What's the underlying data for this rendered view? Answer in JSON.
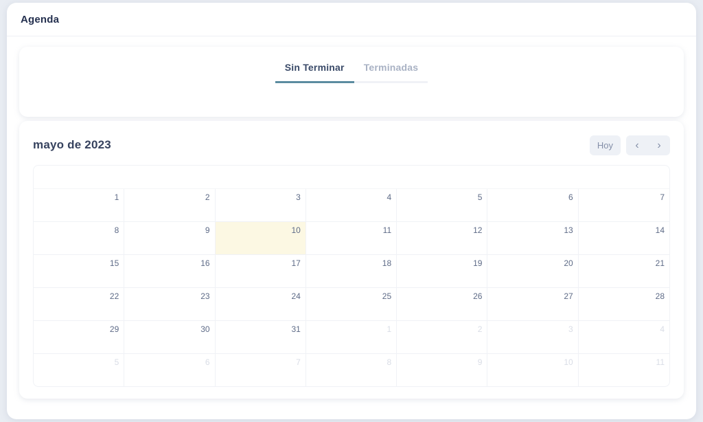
{
  "page": {
    "title": "Agenda"
  },
  "tabs": {
    "items": [
      {
        "label": "Sin Terminar",
        "active": true
      },
      {
        "label": "Terminadas",
        "active": false
      }
    ]
  },
  "calendar": {
    "title": "mayo de 2023",
    "toolbar": {
      "today_label": "Hoy",
      "prev_icon": "‹",
      "next_icon": "›"
    },
    "weeks": [
      [
        {
          "day": "1"
        },
        {
          "day": "2"
        },
        {
          "day": "3"
        },
        {
          "day": "4"
        },
        {
          "day": "5"
        },
        {
          "day": "6"
        },
        {
          "day": "7"
        }
      ],
      [
        {
          "day": "8"
        },
        {
          "day": "9"
        },
        {
          "day": "10",
          "today": true
        },
        {
          "day": "11"
        },
        {
          "day": "12"
        },
        {
          "day": "13"
        },
        {
          "day": "14"
        }
      ],
      [
        {
          "day": "15"
        },
        {
          "day": "16"
        },
        {
          "day": "17"
        },
        {
          "day": "18"
        },
        {
          "day": "19"
        },
        {
          "day": "20"
        },
        {
          "day": "21"
        }
      ],
      [
        {
          "day": "22"
        },
        {
          "day": "23"
        },
        {
          "day": "24"
        },
        {
          "day": "25"
        },
        {
          "day": "26"
        },
        {
          "day": "27"
        },
        {
          "day": "28"
        }
      ],
      [
        {
          "day": "29"
        },
        {
          "day": "30"
        },
        {
          "day": "31"
        },
        {
          "day": "1",
          "other": true
        },
        {
          "day": "2",
          "other": true
        },
        {
          "day": "3",
          "other": true
        },
        {
          "day": "4",
          "other": true
        }
      ],
      [
        {
          "day": "5",
          "other": true
        },
        {
          "day": "6",
          "other": true
        },
        {
          "day": "7",
          "other": true
        },
        {
          "day": "8",
          "other": true
        },
        {
          "day": "9",
          "other": true
        },
        {
          "day": "10",
          "other": true
        },
        {
          "day": "11",
          "other": true
        }
      ]
    ]
  },
  "colors": {
    "accent_tab_underline": "#5b8ca0",
    "today_highlight": "#fcf8e3",
    "active_tab_text": "#3a4a68",
    "inactive_tab_text": "#a9b2c4",
    "day_number_text": "#5e6b87",
    "other_month_day_text": "#d9dde6",
    "button_background": "#eef1f6"
  }
}
